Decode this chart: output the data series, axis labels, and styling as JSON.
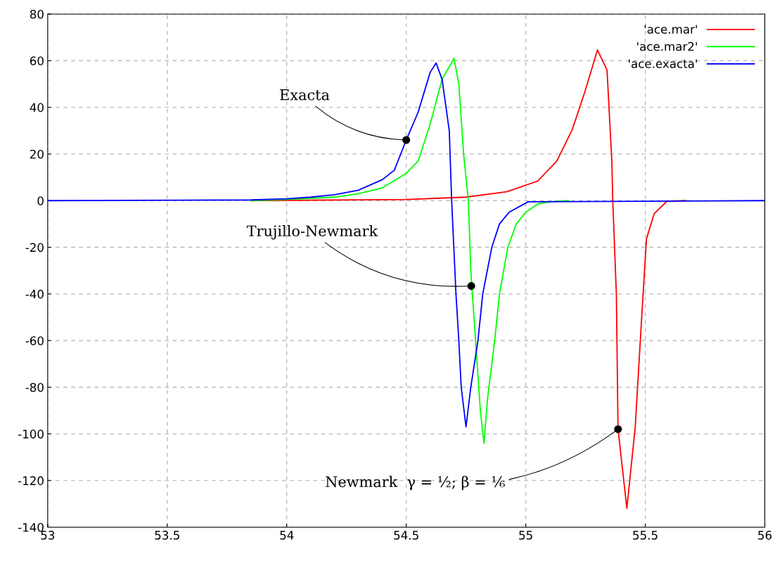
{
  "chart_data": {
    "type": "line",
    "xlim": [
      53,
      56
    ],
    "ylim": [
      -140,
      80
    ],
    "xticks": [
      53,
      53.5,
      54,
      54.5,
      55,
      55.5,
      56
    ],
    "yticks": [
      -140,
      -120,
      -100,
      -80,
      -60,
      -40,
      -20,
      0,
      20,
      40,
      60,
      80
    ],
    "grid": true,
    "legend": "top right",
    "line_style": "solid",
    "marker": "none",
    "series": [
      {
        "name": "'ace.mar'",
        "color": "#ff0000",
        "x": [
          53.85,
          54.5,
          54.75,
          54.92,
          55.05,
          55.13,
          55.195,
          55.248,
          55.3,
          55.34,
          55.36,
          55.364,
          55.379,
          55.386,
          55.423,
          55.458,
          55.485,
          55.505,
          55.537,
          55.59,
          55.67
        ],
        "values": [
          0,
          0.5,
          1.5,
          3.8,
          8.4,
          17,
          30.6,
          46.9,
          64.6,
          56,
          17,
          0,
          -40,
          -98,
          -132,
          -97,
          -50,
          -16.4,
          -5.6,
          -0.3,
          0
        ]
      },
      {
        "name": "'ace.mar2'",
        "color": "#00ff00",
        "x": [
          53.85,
          54.0,
          54.2,
          54.3,
          54.4,
          54.5,
          54.55,
          54.6,
          54.65,
          54.7,
          54.72,
          54.74,
          54.76,
          54.77,
          54.79,
          54.81,
          54.825,
          54.84,
          54.87,
          54.89,
          54.925,
          54.96,
          55.0,
          55.05,
          55.1,
          55.18
        ],
        "values": [
          0,
          0.5,
          1.5,
          3,
          5.5,
          11.7,
          17,
          32.8,
          52,
          61,
          50,
          20,
          0,
          -30,
          -60,
          -90,
          -104,
          -85,
          -60,
          -40,
          -20,
          -10,
          -5,
          -1.5,
          -0.5,
          0
        ]
      },
      {
        "name": "'ace.exacta'",
        "color": "#0000ff",
        "x": [
          53,
          53.85,
          54.0,
          54.1,
          54.2,
          54.3,
          54.4,
          54.45,
          54.5,
          54.55,
          54.6,
          54.625,
          54.65,
          54.68,
          54.69,
          54.699,
          54.708,
          54.72,
          54.73,
          54.75,
          54.77,
          54.8,
          54.82,
          54.858,
          54.89,
          54.93,
          55.01,
          56
        ],
        "values": [
          0,
          0.3,
          0.8,
          1.5,
          2.5,
          4.5,
          9,
          13,
          26,
          38,
          55,
          59,
          52,
          30,
          0,
          -20,
          -40,
          -60,
          -80,
          -97,
          -80,
          -60,
          -40,
          -20,
          -10,
          -5,
          -0.5,
          0
        ]
      }
    ],
    "annotations": [
      {
        "text": "Exacta",
        "x": 54.5,
        "y": 26
      },
      {
        "text": "Trujillo-Newmark",
        "x": 54.772,
        "y": -36.6
      },
      {
        "text": "Newmark  γ = ½; β = ⅙",
        "x": 55.386,
        "y": -98
      }
    ]
  }
}
